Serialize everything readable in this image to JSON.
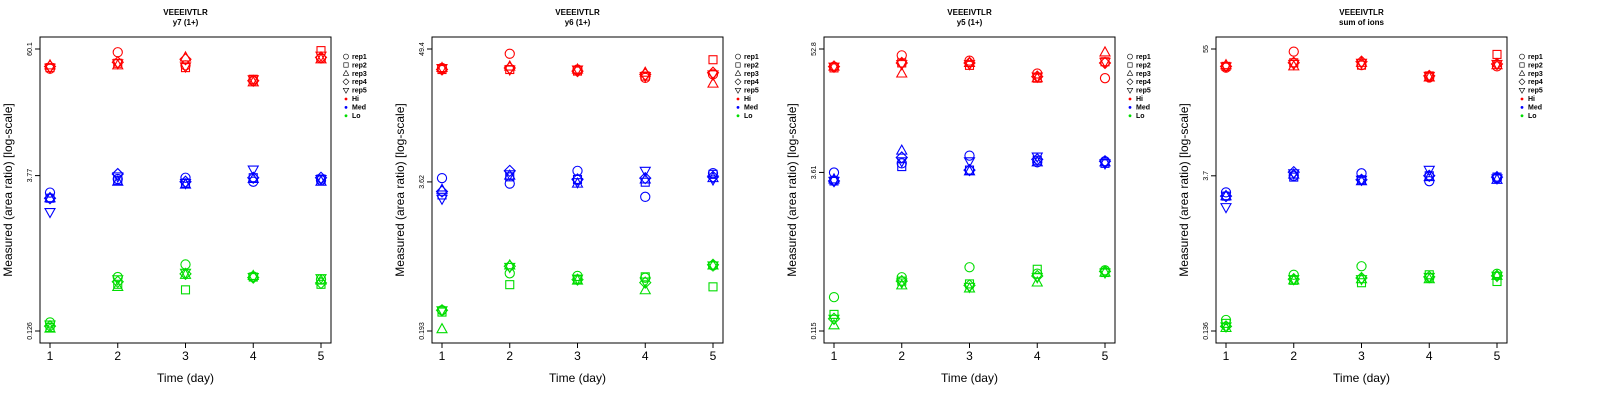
{
  "chart_data": [
    {
      "type": "scatter",
      "title": "VEEEIVTLR",
      "subtitle": "y7 (1+)",
      "xlabel": "Time (day)",
      "ylabel": "Measured (area ratio) [log-scale]",
      "x": [
        1,
        2,
        3,
        4,
        5
      ],
      "x_ticks": [
        "1",
        "2",
        "3",
        "4",
        "5"
      ],
      "y_scale": "log",
      "ylim": [
        0.126,
        60.1
      ],
      "y_ticks": [
        "0.126",
        "3.77",
        "60.1"
      ],
      "y_tick_values": [
        0.126,
        3.77,
        60.1
      ],
      "series": [
        {
          "name": "rep1",
          "level": "Hi",
          "values": [
            39,
            56,
            42,
            30,
            49
          ]
        },
        {
          "name": "rep2",
          "level": "Hi",
          "values": [
            40,
            44,
            40,
            31,
            58
          ]
        },
        {
          "name": "rep3",
          "level": "Hi",
          "values": [
            42,
            42,
            50,
            29,
            48
          ]
        },
        {
          "name": "rep4",
          "level": "Hi",
          "values": [
            41,
            45,
            48,
            30,
            50
          ]
        },
        {
          "name": "rep5",
          "level": "Hi",
          "values": [
            40,
            44,
            41,
            31,
            52
          ]
        },
        {
          "name": "rep1",
          "level": "Med",
          "values": [
            2.6,
            3.5,
            3.6,
            3.3,
            3.4
          ]
        },
        {
          "name": "rep2",
          "level": "Med",
          "values": [
            2.3,
            3.4,
            3.2,
            3.6,
            3.5
          ]
        },
        {
          "name": "rep3",
          "level": "Med",
          "values": [
            2.3,
            3.3,
            3.1,
            3.5,
            3.3
          ]
        },
        {
          "name": "rep4",
          "level": "Med",
          "values": [
            2.3,
            3.9,
            3.3,
            3.6,
            3.6
          ]
        },
        {
          "name": "rep5",
          "level": "Med",
          "values": [
            1.7,
            3.7,
            3.2,
            4.3,
            3.5
          ]
        },
        {
          "name": "rep1",
          "level": "Lo",
          "values": [
            0.152,
            0.41,
            0.54,
            0.415,
            0.39
          ]
        },
        {
          "name": "rep2",
          "level": "Lo",
          "values": [
            0.136,
            0.35,
            0.31,
            0.41,
            0.35
          ]
        },
        {
          "name": "rep3",
          "level": "Lo",
          "values": [
            0.133,
            0.33,
            0.43,
            0.42,
            0.38
          ]
        },
        {
          "name": "rep4",
          "level": "Lo",
          "values": [
            0.14,
            0.37,
            0.44,
            0.405,
            0.36
          ]
        },
        {
          "name": "rep5",
          "level": "Lo",
          "values": [
            0.145,
            0.39,
            0.45,
            0.41,
            0.4
          ]
        }
      ]
    },
    {
      "type": "scatter",
      "title": "VEEEIVTLR",
      "subtitle": "y6 (1+)",
      "xlabel": "Time (day)",
      "ylabel": "Measured (area ratio) [log-scale]",
      "x": [
        1,
        2,
        3,
        4,
        5
      ],
      "x_ticks": [
        "1",
        "2",
        "3",
        "4",
        "5"
      ],
      "y_scale": "log",
      "ylim": [
        0.193,
        49.4
      ],
      "y_ticks": [
        "0.193",
        "3.62",
        "49.4"
      ],
      "y_tick_values": [
        0.193,
        3.62,
        49.4
      ],
      "series": [
        {
          "name": "rep1",
          "level": "Hi",
          "values": [
            34,
            45,
            33,
            28,
            30
          ]
        },
        {
          "name": "rep2",
          "level": "Hi",
          "values": [
            33,
            33,
            32,
            29,
            40
          ]
        },
        {
          "name": "rep3",
          "level": "Hi",
          "values": [
            34,
            35,
            33,
            31,
            25
          ]
        },
        {
          "name": "rep4",
          "level": "Hi",
          "values": [
            33,
            34,
            32,
            30,
            31
          ]
        },
        {
          "name": "rep5",
          "level": "Hi",
          "values": [
            34,
            33,
            33,
            29,
            30
          ]
        },
        {
          "name": "rep1",
          "level": "Med",
          "values": [
            3.9,
            3.5,
            4.5,
            2.7,
            4.3
          ]
        },
        {
          "name": "rep2",
          "level": "Med",
          "values": [
            2.8,
            4.0,
            3.8,
            3.6,
            4.2
          ]
        },
        {
          "name": "rep3",
          "level": "Med",
          "values": [
            3.1,
            4.1,
            3.5,
            3.8,
            3.9
          ]
        },
        {
          "name": "rep4",
          "level": "Med",
          "values": [
            3.0,
            4.5,
            3.8,
            3.9,
            4.0
          ]
        },
        {
          "name": "rep5",
          "level": "Med",
          "values": [
            2.6,
            4.2,
            3.6,
            4.5,
            3.8
          ]
        },
        {
          "name": "rep1",
          "level": "Lo",
          "values": [
            0.29,
            0.6,
            0.57,
            0.55,
            0.7
          ]
        },
        {
          "name": "rep2",
          "level": "Lo",
          "values": [
            0.28,
            0.48,
            0.53,
            0.56,
            0.46
          ]
        },
        {
          "name": "rep3",
          "level": "Lo",
          "values": [
            0.2,
            0.7,
            0.52,
            0.43,
            0.7
          ]
        },
        {
          "name": "rep4",
          "level": "Lo",
          "values": [
            0.29,
            0.69,
            0.53,
            0.5,
            0.71
          ]
        },
        {
          "name": "rep5",
          "level": "Lo",
          "values": [
            0.29,
            0.68,
            0.54,
            0.51,
            0.7
          ]
        }
      ]
    },
    {
      "type": "scatter",
      "title": "VEEEIVTLR",
      "subtitle": "y5 (1+)",
      "xlabel": "Time (day)",
      "ylabel": "Measured (area ratio) [log-scale]",
      "x": [
        1,
        2,
        3,
        4,
        5
      ],
      "x_ticks": [
        "1",
        "2",
        "3",
        "4",
        "5"
      ],
      "y_scale": "log",
      "ylim": [
        0.115,
        52.8
      ],
      "y_ticks": [
        "0.115",
        "3.61",
        "52.8"
      ],
      "y_tick_values": [
        0.115,
        3.61,
        52.8
      ],
      "series": [
        {
          "name": "rep1",
          "level": "Hi",
          "values": [
            36,
            46,
            41,
            31,
            28
          ]
        },
        {
          "name": "rep2",
          "level": "Hi",
          "values": [
            35,
            39,
            37,
            28,
            40
          ]
        },
        {
          "name": "rep3",
          "level": "Hi",
          "values": [
            36,
            31,
            39,
            28,
            49
          ]
        },
        {
          "name": "rep4",
          "level": "Hi",
          "values": [
            36,
            39,
            39,
            29,
            39
          ]
        },
        {
          "name": "rep5",
          "level": "Hi",
          "values": [
            36,
            38,
            38,
            29,
            40
          ]
        },
        {
          "name": "rep1",
          "level": "Med",
          "values": [
            3.6,
            4.4,
            5.2,
            4.5,
            4.6
          ]
        },
        {
          "name": "rep2",
          "level": "Med",
          "values": [
            3.0,
            4.1,
            3.8,
            4.7,
            4.4
          ]
        },
        {
          "name": "rep3",
          "level": "Med",
          "values": [
            3.1,
            5.8,
            3.7,
            4.5,
            4.5
          ]
        },
        {
          "name": "rep4",
          "level": "Med",
          "values": [
            3.0,
            5.0,
            3.8,
            4.8,
            4.6
          ]
        },
        {
          "name": "rep5",
          "level": "Med",
          "values": [
            3.0,
            4.6,
            4.6,
            5.1,
            4.4
          ]
        },
        {
          "name": "rep1",
          "level": "Lo",
          "values": [
            0.24,
            0.37,
            0.46,
            0.4,
            0.43
          ]
        },
        {
          "name": "rep2",
          "level": "Lo",
          "values": [
            0.165,
            0.34,
            0.32,
            0.44,
            0.41
          ]
        },
        {
          "name": "rep3",
          "level": "Lo",
          "values": [
            0.13,
            0.31,
            0.29,
            0.33,
            0.41
          ]
        },
        {
          "name": "rep4",
          "level": "Lo",
          "values": [
            0.15,
            0.34,
            0.31,
            0.38,
            0.42
          ]
        },
        {
          "name": "rep5",
          "level": "Lo",
          "values": [
            0.15,
            0.33,
            0.3,
            0.37,
            0.41
          ]
        }
      ]
    },
    {
      "type": "scatter",
      "title": "VEEEIVTLR",
      "subtitle": "sum of ions",
      "xlabel": "Time (day)",
      "ylabel": "Measured (area ratio) [log-scale]",
      "x": [
        1,
        2,
        3,
        4,
        5
      ],
      "x_ticks": [
        "1",
        "2",
        "3",
        "4",
        "5"
      ],
      "y_scale": "log",
      "ylim": [
        0.136,
        55
      ],
      "y_ticks": [
        "0.136",
        "3.7",
        "55"
      ],
      "y_tick_values": [
        0.136,
        3.7,
        55
      ],
      "series": [
        {
          "name": "rep1",
          "level": "Hi",
          "values": [
            37,
            52,
            39,
            30,
            38
          ]
        },
        {
          "name": "rep2",
          "level": "Hi",
          "values": [
            38,
            41,
            39,
            31,
            49
          ]
        },
        {
          "name": "rep3",
          "level": "Hi",
          "values": [
            39,
            38,
            41,
            30,
            39
          ]
        },
        {
          "name": "rep4",
          "level": "Hi",
          "values": [
            38,
            41,
            42,
            31,
            40
          ]
        },
        {
          "name": "rep5",
          "level": "Hi",
          "values": [
            38,
            40,
            41,
            31,
            40
          ]
        },
        {
          "name": "rep1",
          "level": "Med",
          "values": [
            2.6,
            3.7,
            3.9,
            3.3,
            3.5
          ]
        },
        {
          "name": "rep2",
          "level": "Med",
          "values": [
            2.4,
            3.6,
            3.4,
            3.7,
            3.6
          ]
        },
        {
          "name": "rep3",
          "level": "Med",
          "values": [
            2.4,
            3.8,
            3.3,
            3.6,
            3.4
          ]
        },
        {
          "name": "rep4",
          "level": "Med",
          "values": [
            2.4,
            4.0,
            3.4,
            3.7,
            3.6
          ]
        },
        {
          "name": "rep5",
          "level": "Med",
          "values": [
            1.9,
            3.9,
            3.4,
            4.2,
            3.5
          ]
        },
        {
          "name": "rep1",
          "level": "Lo",
          "values": [
            0.172,
            0.45,
            0.54,
            0.42,
            0.46
          ]
        },
        {
          "name": "rep2",
          "level": "Lo",
          "values": [
            0.16,
            0.4,
            0.38,
            0.45,
            0.39
          ]
        },
        {
          "name": "rep3",
          "level": "Lo",
          "values": [
            0.145,
            0.4,
            0.41,
            0.41,
            0.44
          ]
        },
        {
          "name": "rep4",
          "level": "Lo",
          "values": [
            0.15,
            0.41,
            0.42,
            0.43,
            0.44
          ]
        },
        {
          "name": "rep5",
          "level": "Lo",
          "values": [
            0.15,
            0.41,
            0.41,
            0.43,
            0.44
          ]
        }
      ]
    }
  ],
  "legend": {
    "entries": [
      {
        "label": "rep1",
        "marker": "circle"
      },
      {
        "label": "rep2",
        "marker": "square"
      },
      {
        "label": "rep3",
        "marker": "triangle-up"
      },
      {
        "label": "rep4",
        "marker": "diamond"
      },
      {
        "label": "rep5",
        "marker": "triangle-down"
      },
      {
        "label": "Hi",
        "marker": "dot",
        "color": "#ff0000"
      },
      {
        "label": "Med",
        "marker": "dot",
        "color": "#0000ff"
      },
      {
        "label": "Lo",
        "marker": "dot",
        "color": "#00dd00"
      }
    ]
  },
  "colors": {
    "Hi": "#ff0000",
    "Med": "#0000ff",
    "Lo": "#00dd00"
  }
}
